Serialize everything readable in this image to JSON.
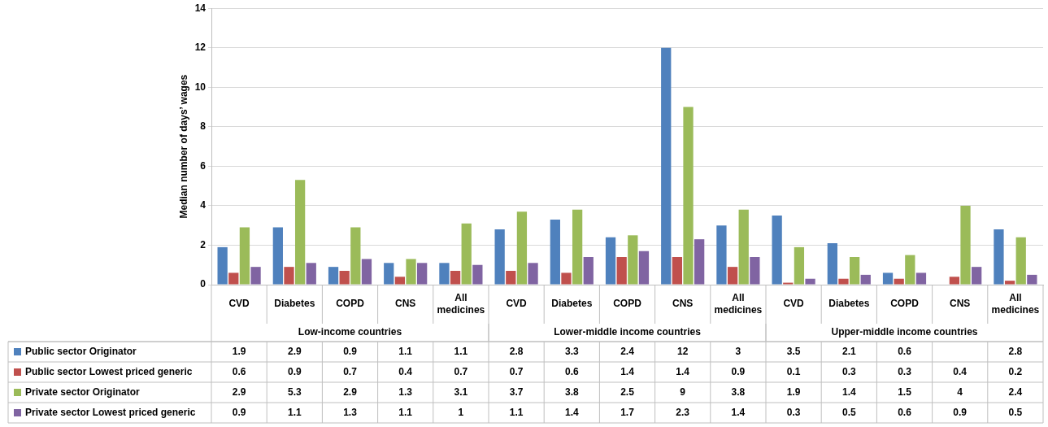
{
  "chart_data": {
    "type": "bar",
    "ylabel": "Median number of days’ wages",
    "categories": [
      "CVD",
      "Diabetes",
      "COPD",
      "CNS",
      "All medicines",
      "CVD",
      "Diabetes",
      "COPD",
      "CNS",
      "All medicines",
      "CVD",
      "Diabetes",
      "COPD",
      "CNS",
      "All medicines"
    ],
    "annotations": [
      "Low-income countries",
      "Lower-middle income countries",
      "Upper-middle income countries"
    ],
    "series": [
      {
        "name": "Public sector Originator",
        "color": "#4f81bd",
        "values": [
          1.9,
          2.9,
          0.9,
          1.1,
          1.1,
          2.8,
          3.3,
          2.4,
          12,
          3,
          3.5,
          2.1,
          0.6,
          null,
          2.8
        ]
      },
      {
        "name": "Public sector Lowest priced generic",
        "color": "#c0504d",
        "values": [
          0.6,
          0.9,
          0.7,
          0.4,
          0.7,
          0.7,
          0.6,
          1.4,
          1.4,
          0.9,
          0.1,
          0.3,
          0.3,
          0.4,
          0.2
        ]
      },
      {
        "name": "Private sector Originator",
        "color": "#9bbb59",
        "values": [
          2.9,
          5.3,
          2.9,
          1.3,
          3.1,
          3.7,
          3.8,
          2.5,
          9,
          3.8,
          1.9,
          1.4,
          1.5,
          4,
          2.4
        ]
      },
      {
        "name": "Private sector Lowest priced generic",
        "color": "#8064a2",
        "values": [
          0.9,
          1.1,
          1.3,
          1.1,
          1,
          1.1,
          1.4,
          1.7,
          2.3,
          1.4,
          0.3,
          0.5,
          0.6,
          0.9,
          0.5
        ]
      }
    ],
    "ylim": [
      0,
      14
    ],
    "yticks": [
      0,
      2,
      4,
      6,
      8,
      10,
      12,
      14
    ],
    "grid": "y",
    "legend": "bottom",
    "data_labels": true
  }
}
